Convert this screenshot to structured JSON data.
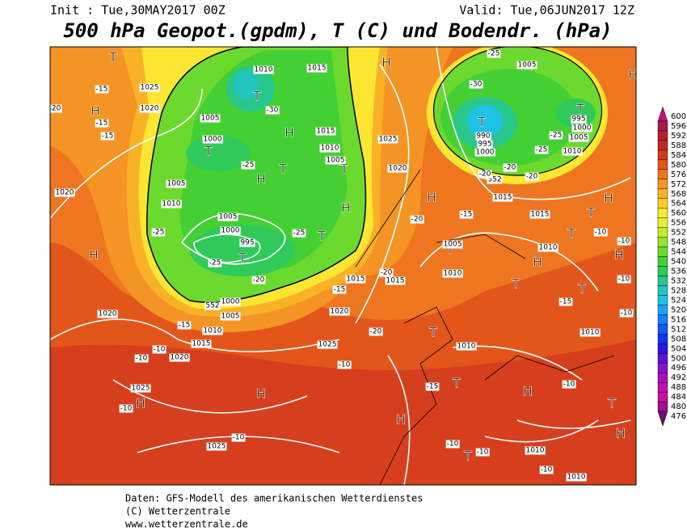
{
  "header": {
    "init": "Init : Tue,30MAY2017 00Z",
    "valid": "Valid: Tue,06JUN2017 12Z",
    "title": "500 hPa Geopot.(gpdm), T (C) und Bodendr. (hPa)"
  },
  "colorbar": {
    "levels": [
      600,
      596,
      592,
      588,
      584,
      580,
      576,
      572,
      568,
      564,
      560,
      556,
      552,
      548,
      544,
      540,
      536,
      532,
      528,
      524,
      520,
      516,
      512,
      508,
      504,
      500,
      496,
      492,
      488,
      484,
      480,
      476
    ],
    "colors": [
      "#c8107a",
      "#a51a4a",
      "#b31f2a",
      "#c02a22",
      "#d33a1c",
      "#e2561c",
      "#ee7620",
      "#f39424",
      "#f8b228",
      "#fbcd2c",
      "#fde632",
      "#e4ef34",
      "#c2ec2c",
      "#98e22c",
      "#6cd92e",
      "#44d034",
      "#2fca5a",
      "#28c78c",
      "#22c5bc",
      "#1ec2e6",
      "#1ca2f4",
      "#187cf4",
      "#1458f2",
      "#1034ec",
      "#2c16e0",
      "#5a12d4",
      "#8412c8",
      "#a612bc",
      "#c012b0",
      "#c4129c",
      "#a01290",
      "#6c1068"
    ]
  },
  "map": {
    "labels": [
      "T",
      "H",
      "H",
      "T",
      "T",
      "H",
      "T",
      "T",
      "H",
      "H",
      "T",
      "T",
      "H",
      "T",
      "T",
      "H",
      "T",
      "H",
      "T",
      "T",
      "H",
      "T",
      "T",
      "H",
      "T",
      "T",
      "H",
      "T",
      "H",
      "H",
      "H",
      "T",
      "H",
      "H",
      "1015",
      "1010",
      "1025",
      "1020",
      "1005",
      "1000",
      "1015",
      "1010",
      "1005",
      "1025",
      "1020",
      "1005",
      "1010",
      "1020",
      "1005",
      "1000",
      "995",
      "1000",
      "1005",
      "1015",
      "1015",
      "1020",
      "1010",
      "1015",
      "1020",
      "1020",
      "1025",
      "1025",
      "1025",
      "1005",
      "1010",
      "1015",
      "1015",
      "1010",
      "1010",
      "1010",
      "1005",
      "990",
      "995",
      "1000",
      "995",
      "1000",
      "1005",
      "1010",
      "1010",
      "1010",
      "552",
      "552",
      "-15",
      "-15",
      "-15",
      "-20",
      "-25",
      "-25",
      "-20",
      "-25",
      "-25",
      "-30",
      "-25",
      "-30",
      "-25",
      "-25",
      "-20",
      "-20",
      "-20",
      "-15",
      "-20",
      "-15",
      "-20",
      "-20",
      "-15",
      "-10",
      "-10",
      "-10",
      "-15",
      "-10",
      "-10",
      "-10",
      "-10",
      "-10",
      "-10",
      "-15",
      "-10",
      "-10",
      "-10",
      "-10"
    ]
  },
  "footer": {
    "line1": "Daten: GFS-Modell des amerikanischen Wetterdienstes",
    "line2": "(C) Wetterzentrale",
    "line3": "www.wetterzentrale.de"
  }
}
